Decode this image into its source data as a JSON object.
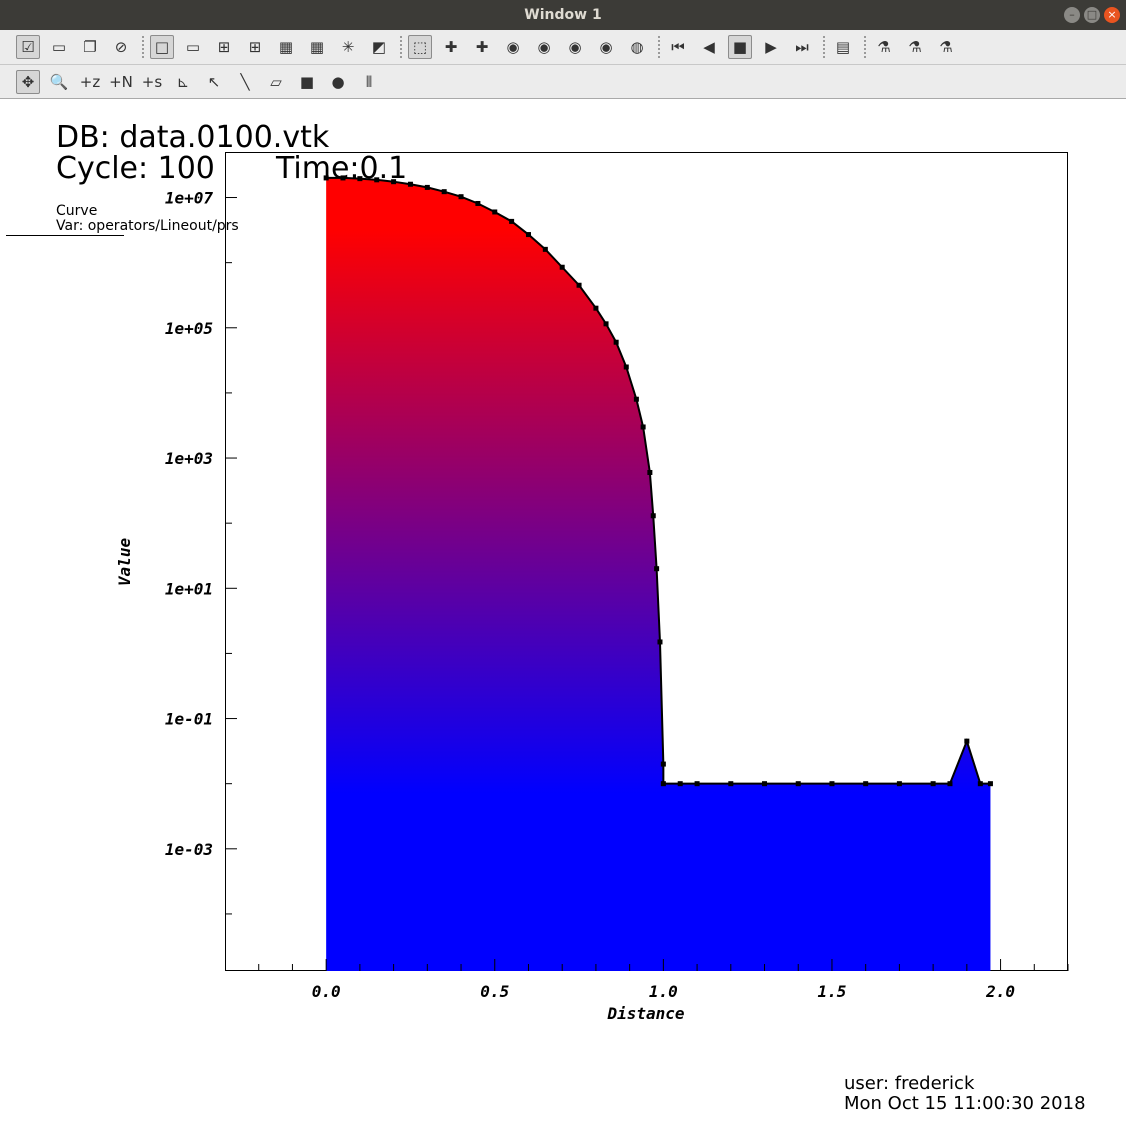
{
  "window": {
    "title": "Window 1",
    "controls": {
      "minimize": "–",
      "maximize": "□",
      "close": "×"
    }
  },
  "toolbar_top": {
    "buttons": [
      {
        "icon": "active-window-check-icon",
        "glyph": "☑",
        "pressed": true
      },
      {
        "icon": "new-window-icon",
        "glyph": "▭"
      },
      {
        "icon": "clone-window-icon",
        "glyph": "❐"
      },
      {
        "icon": "delete-window-icon",
        "glyph": "⊘"
      },
      {
        "icon": "layout-1x1-icon",
        "glyph": "□",
        "pressed": true
      },
      {
        "icon": "layout-1x2-icon",
        "glyph": "▭"
      },
      {
        "icon": "layout-2x2-icon",
        "glyph": "⊞"
      },
      {
        "icon": "layout-3x2-icon",
        "glyph": "⊞"
      },
      {
        "icon": "layout-4x2-icon",
        "glyph": "▦"
      },
      {
        "icon": "layout-3x3-icon",
        "glyph": "▦"
      },
      {
        "icon": "lock-view-icon",
        "glyph": "✳"
      },
      {
        "icon": "lock-time-icon",
        "glyph": "◩"
      },
      {
        "icon": "perspective-box-icon",
        "glyph": "⬚",
        "pressed": true
      },
      {
        "icon": "recenter-view-icon",
        "glyph": "✚"
      },
      {
        "icon": "undo-view-icon",
        "glyph": "✚"
      },
      {
        "icon": "camera-icon",
        "glyph": "◉"
      },
      {
        "icon": "save-view-icon",
        "glyph": "◉"
      },
      {
        "icon": "print-icon",
        "glyph": "◉"
      },
      {
        "icon": "save-image-icon",
        "glyph": "◉"
      },
      {
        "icon": "spin-icon",
        "glyph": "◍"
      },
      {
        "icon": "step-back-icon",
        "glyph": "⏮"
      },
      {
        "icon": "reverse-play-icon",
        "glyph": "◀"
      },
      {
        "icon": "stop-icon",
        "glyph": "■",
        "pressed": true
      },
      {
        "icon": "play-icon",
        "glyph": "▶"
      },
      {
        "icon": "step-forward-icon",
        "glyph": "⏭"
      },
      {
        "icon": "plot-attributes-icon",
        "glyph": "▤"
      },
      {
        "icon": "lineout-tool-icon",
        "glyph": "⚗"
      },
      {
        "icon": "pick-tool-icon",
        "glyph": "⚗"
      },
      {
        "icon": "query-tool-icon",
        "glyph": "⚗"
      }
    ]
  },
  "toolbar_bottom": {
    "buttons": [
      {
        "icon": "navigate-mode-icon",
        "glyph": "✥",
        "pressed": true
      },
      {
        "icon": "zoom-icon",
        "glyph": "🔍"
      },
      {
        "icon": "zone-pick-icon",
        "glyph": "+z"
      },
      {
        "icon": "node-pick-icon",
        "glyph": "+N"
      },
      {
        "icon": "spreadsheet-pick-icon",
        "glyph": "+s"
      },
      {
        "icon": "curve-tool-icon",
        "glyph": "⊾"
      },
      {
        "icon": "point-tool-icon",
        "glyph": "↖"
      },
      {
        "icon": "line-tool-icon",
        "glyph": "╲"
      },
      {
        "icon": "plane-tool-icon",
        "glyph": "▱"
      },
      {
        "icon": "box-tool-icon",
        "glyph": "■"
      },
      {
        "icon": "sphere-tool-icon",
        "glyph": "●"
      },
      {
        "icon": "axis-restriction-icon",
        "glyph": "⫴"
      }
    ]
  },
  "annotations": {
    "db": "DB: data.0100.vtk",
    "cycle": "Cycle: 100",
    "time": "Time:0.1",
    "legend_title": "Curve",
    "legend_var": "Var: operators/Lineout/prs",
    "user": "user: frederick",
    "date": "Mon Oct 15 11:00:30 2018"
  },
  "chart_data": {
    "type": "area",
    "xlabel": "Distance",
    "ylabel": "Value",
    "xlim": [
      -0.3,
      2.2
    ],
    "ylim": [
      1.33e-05,
      50000000
    ],
    "yscale": "log",
    "x_ticks": [
      {
        "value": 0.0,
        "label": "0.0"
      },
      {
        "value": 0.5,
        "label": "0.5"
      },
      {
        "value": 1.0,
        "label": "1.0"
      },
      {
        "value": 1.5,
        "label": "1.5"
      },
      {
        "value": 2.0,
        "label": "2.0"
      }
    ],
    "y_ticks": [
      {
        "value": 10000000,
        "label": "1e+07"
      },
      {
        "value": 100000,
        "label": "1e+05"
      },
      {
        "value": 1000,
        "label": "1e+03"
      },
      {
        "value": 10,
        "label": "1e+01"
      },
      {
        "value": 0.1,
        "label": "1e-01"
      },
      {
        "value": 0.001,
        "label": "1e-03"
      }
    ],
    "fill_gradient": {
      "high": "#ff0000",
      "low": "#0000ff"
    },
    "marker_color": "#000000",
    "series": [
      {
        "x": [
          0.0,
          0.05,
          0.1,
          0.15,
          0.2,
          0.25,
          0.3,
          0.35,
          0.4,
          0.45,
          0.5,
          0.55,
          0.6,
          0.65,
          0.7,
          0.75,
          0.8,
          0.83,
          0.86,
          0.89,
          0.92,
          0.94,
          0.96,
          0.97,
          0.98,
          0.99,
          1.0,
          1.0,
          1.05,
          1.1,
          1.2,
          1.3,
          1.4,
          1.5,
          1.6,
          1.7,
          1.8,
          1.85,
          1.9,
          1.94,
          1.97
        ],
        "values": [
          20000000,
          20000000,
          19500000,
          18700000,
          17500000,
          16000000,
          14300000,
          12300000,
          10300000,
          8100000,
          6000000,
          4300000,
          2700000,
          1600000,
          850000,
          450000,
          200000,
          115000,
          60000,
          25000,
          8000,
          3000,
          600,
          130,
          20,
          1.5,
          0.02,
          0.01,
          0.01,
          0.01,
          0.01,
          0.01,
          0.01,
          0.01,
          0.01,
          0.01,
          0.01,
          0.01,
          0.045,
          0.01,
          0.01
        ]
      }
    ]
  }
}
